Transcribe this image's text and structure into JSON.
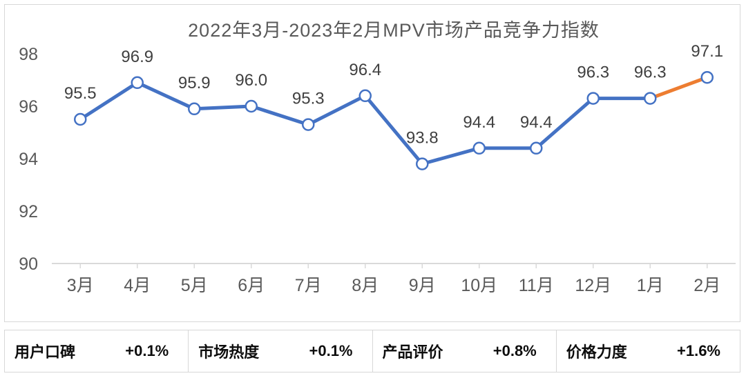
{
  "chart_data": {
    "type": "line",
    "title": "2022年3月-2023年2月MPV市场产品竞争力指数",
    "categories": [
      "3月",
      "4月",
      "5月",
      "6月",
      "7月",
      "8月",
      "9月",
      "10月",
      "11月",
      "12月",
      "1月",
      "2月"
    ],
    "series": [
      {
        "values": [
          95.5,
          96.9,
          95.9,
          96.0,
          95.3,
          96.4,
          93.8,
          94.4,
          94.4,
          96.3,
          96.3,
          97.1
        ]
      }
    ],
    "data_label_decimals": 1,
    "ylim": [
      90,
      98
    ],
    "yticks": [
      90,
      92,
      94,
      96,
      98
    ],
    "grid": false,
    "legend_position": "none",
    "highlight_last_segment": true,
    "colors": {
      "line": "#4472C4",
      "last_segment": "#ED7D31",
      "marker_fill": "#FFFFFF",
      "marker_stroke": "#4472C4",
      "drop_line": "#9FB9E2",
      "axis": "#D9D9D9",
      "tick_label": "#595959",
      "data_label": "#404040",
      "title": "#595959"
    }
  },
  "metrics": [
    {
      "label": "用户口碑",
      "value": "+0.1%"
    },
    {
      "label": "市场热度",
      "value": "+0.1%"
    },
    {
      "label": "产品评价",
      "value": "+0.8%"
    },
    {
      "label": "价格力度",
      "value": "+1.6%"
    }
  ]
}
